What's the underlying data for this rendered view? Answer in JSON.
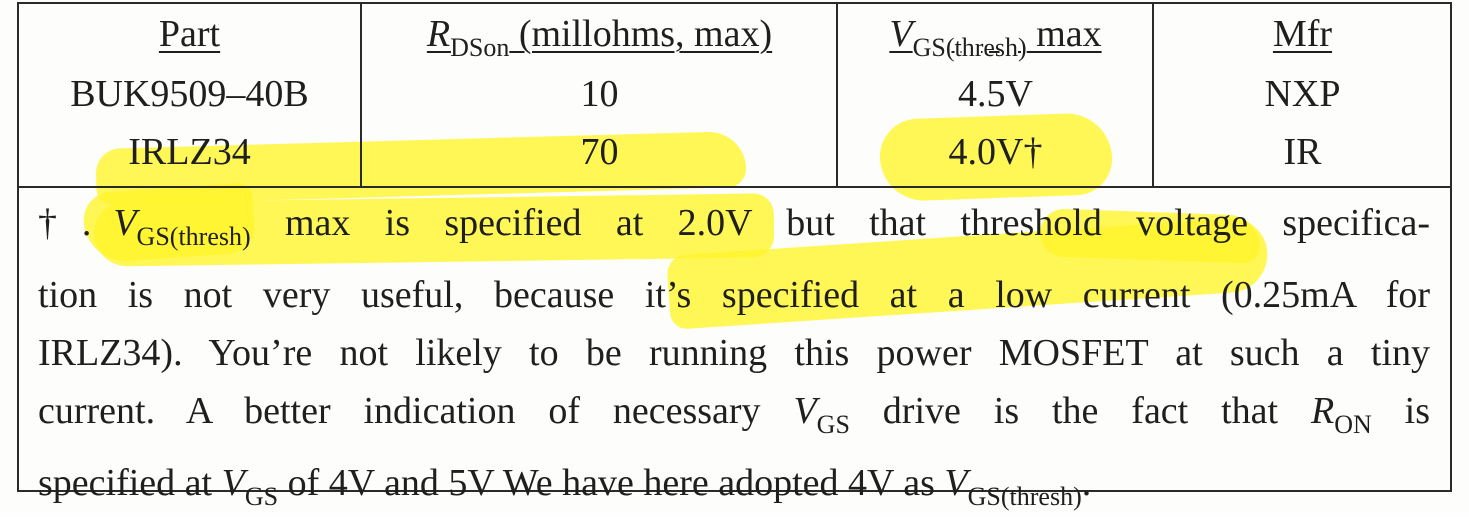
{
  "table": {
    "headers": {
      "part": "Part",
      "rdson_var": "R",
      "rdson_sub": "DSon",
      "rdson_rest": " (millohms, max)",
      "vgs_var": "V",
      "vgs_sub": "GS(thresh)",
      "vgs_rest": " max",
      "mfr": "Mfr"
    },
    "rows": [
      {
        "part": "BUK9509–40B",
        "rdson": "10",
        "vgs": "4.5V",
        "mfr": "NXP"
      },
      {
        "part": "IRLZ34",
        "rdson": "70",
        "vgs": "4.0V†",
        "mfr": "IR"
      }
    ]
  },
  "note": {
    "l1_mark": "†.",
    "l1_var": "V",
    "l1_sub": "GS(thresh)",
    "l1_rest": " max is specified at 2.0V but that threshold voltage specifica-",
    "l2": "tion is not very useful, because it’s specified at a low current (0.25mA for",
    "l3": "IRLZ34). You’re not likely to be running this power MOSFET at such a tiny",
    "l4_a": "current. A better indication of necessary ",
    "l4_var1": "V",
    "l4_sub1": "GS",
    "l4_b": " drive is the fact that ",
    "l4_var2": "R",
    "l4_sub2": "ON",
    "l4_c": " is",
    "l5_a": "specified at ",
    "l5_var1": "V",
    "l5_sub1": "GS",
    "l5_b": " of 4V and 5V We have here adopted 4V as ",
    "l5_var2": "V",
    "l5_sub2": "GS(thresh)",
    "l5_c": "."
  },
  "colors": {
    "highlight": "#fff528",
    "ink": "#1f1f1f",
    "rule": "#2a2a2a"
  }
}
